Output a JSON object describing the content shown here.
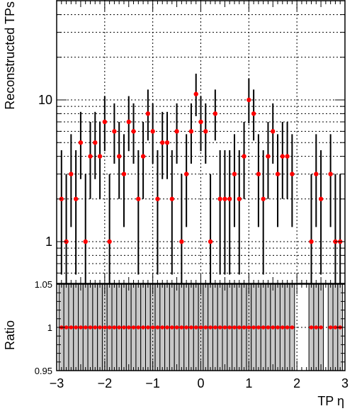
{
  "chart_data": [
    {
      "type": "scatter",
      "name": "main",
      "title": "",
      "xlabel": "",
      "ylabel": "Reconstructed TPs",
      "ylog": true,
      "ylim": [
        0.35,
        63
      ],
      "xlim": [
        -3,
        3
      ],
      "grid": true,
      "ytick_labels": [
        "1",
        "10"
      ],
      "x": [
        -2.9,
        -2.8,
        -2.7,
        -2.6,
        -2.5,
        -2.4,
        -2.3,
        -2.2,
        -2.1,
        -2.0,
        -1.9,
        -1.8,
        -1.7,
        -1.6,
        -1.5,
        -1.4,
        -1.3,
        -1.2,
        -1.1,
        -1.0,
        -0.9,
        -0.8,
        -0.7,
        -0.6,
        -0.5,
        -0.4,
        -0.3,
        -0.2,
        -0.1,
        0.0,
        0.1,
        0.2,
        0.3,
        0.4,
        0.5,
        0.6,
        0.7,
        0.8,
        0.9,
        1.0,
        1.1,
        1.2,
        1.3,
        1.4,
        1.5,
        1.6,
        1.7,
        1.8,
        1.9,
        2.0,
        2.1,
        2.2,
        2.3,
        2.4,
        2.5,
        2.6,
        2.7,
        2.8,
        2.9
      ],
      "y": [
        2,
        1,
        3,
        2,
        5,
        1,
        4,
        5,
        4,
        7,
        1,
        6,
        4,
        3,
        7,
        6,
        2,
        4,
        8,
        6,
        2,
        5,
        5,
        2,
        6,
        1,
        3,
        6,
        11,
        7,
        6,
        1,
        8,
        2,
        2,
        2,
        3,
        2,
        4,
        10,
        8,
        3,
        2,
        4,
        6,
        3,
        4,
        4,
        3,
        0,
        0,
        0,
        1,
        3,
        2,
        0,
        3,
        1,
        1
      ],
      "series": [
        {
          "name": "",
          "color": "#ff0000"
        }
      ]
    },
    {
      "type": "scatter",
      "name": "ratio",
      "xlabel": "TP η",
      "ylabel": "Ratio",
      "ylim": [
        0.95,
        1.05
      ],
      "xlim": [
        -3,
        3
      ],
      "grid": true,
      "xtick_labels": [
        "−3",
        "−2",
        "−1",
        "0",
        "1",
        "2",
        "3"
      ],
      "ytick_labels": [
        "0.95",
        "1",
        "1.05"
      ],
      "x": [
        -2.9,
        -2.8,
        -2.7,
        -2.6,
        -2.5,
        -2.4,
        -2.3,
        -2.2,
        -2.1,
        -2.0,
        -1.9,
        -1.8,
        -1.7,
        -1.6,
        -1.5,
        -1.4,
        -1.3,
        -1.2,
        -1.1,
        -1.0,
        -0.9,
        -0.8,
        -0.7,
        -0.6,
        -0.5,
        -0.4,
        -0.3,
        -0.2,
        -0.1,
        0.0,
        0.1,
        0.2,
        0.3,
        0.4,
        0.5,
        0.6,
        0.7,
        0.8,
        0.9,
        1.0,
        1.1,
        1.2,
        1.3,
        1.4,
        1.5,
        1.6,
        1.7,
        1.8,
        1.9,
        2.0,
        2.1,
        2.2,
        2.3,
        2.4,
        2.5,
        2.6,
        2.7,
        2.8,
        2.9
      ],
      "y": [
        1,
        1,
        1,
        1,
        1,
        1,
        1,
        1,
        1,
        1,
        1,
        1,
        1,
        1,
        1,
        1,
        1,
        1,
        1,
        1,
        1,
        1,
        1,
        1,
        1,
        1,
        1,
        1,
        1,
        1,
        1,
        1,
        1,
        1,
        1,
        1,
        1,
        1,
        1,
        1,
        1,
        1,
        1,
        1,
        1,
        1,
        1,
        1,
        1,
        1,
        1,
        1,
        1,
        1,
        1,
        1,
        1,
        1,
        1
      ],
      "series": [
        {
          "name": "",
          "color": "#ff0000"
        }
      ],
      "band_color": "#c8c8c8"
    }
  ]
}
